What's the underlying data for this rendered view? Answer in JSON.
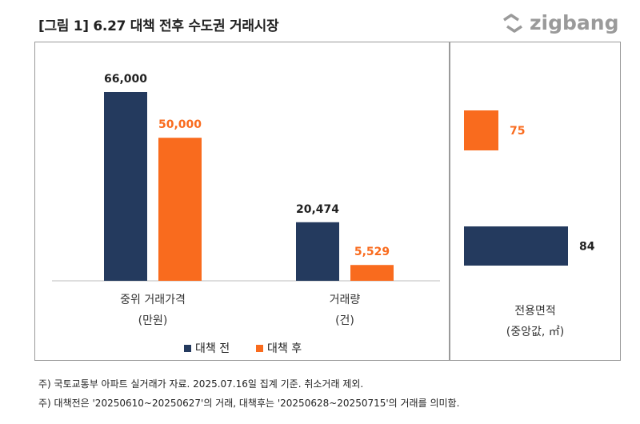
{
  "header": {
    "title": "[그림 1] 6.27 대책 전후 수도권 거래시장",
    "brand": "zigbang"
  },
  "colors": {
    "before": "#243a5e",
    "after": "#f96b1e",
    "axis": "#bdbdbd",
    "panel_border": "#9a9a9a",
    "brand": "#9a9a9a"
  },
  "chart_data": [
    {
      "type": "bar",
      "categories": [
        "중위 거래가격",
        "거래량"
      ],
      "category_units": [
        "(만원)",
        "(건)"
      ],
      "series": [
        {
          "name": "대책 전",
          "values": [
            66000,
            20474
          ],
          "labels": [
            "66,000",
            "20,474"
          ]
        },
        {
          "name": "대책 후",
          "values": [
            50000,
            5529
          ],
          "labels": [
            "50,000",
            "5,529"
          ]
        }
      ],
      "legend": {
        "position": "bottom",
        "entries": [
          "대책 전",
          "대책 후"
        ]
      }
    },
    {
      "type": "bar",
      "orientation": "horizontal",
      "category": "전용면적",
      "unit": "(중앙값, ㎡)",
      "series": [
        {
          "name": "대책 후",
          "value": 75,
          "label": "75"
        },
        {
          "name": "대책 전",
          "value": 84,
          "label": "84"
        }
      ]
    }
  ],
  "footnotes": [
    "주) 국토교통부 아파트 실거래가 자료. 2025.07.16일 집계 기준. 취소거래 제외.",
    "주) 대책전은 '20250610~20250627'의 거래, 대책후는 '20250628~20250715'의 거래를 의미함."
  ]
}
